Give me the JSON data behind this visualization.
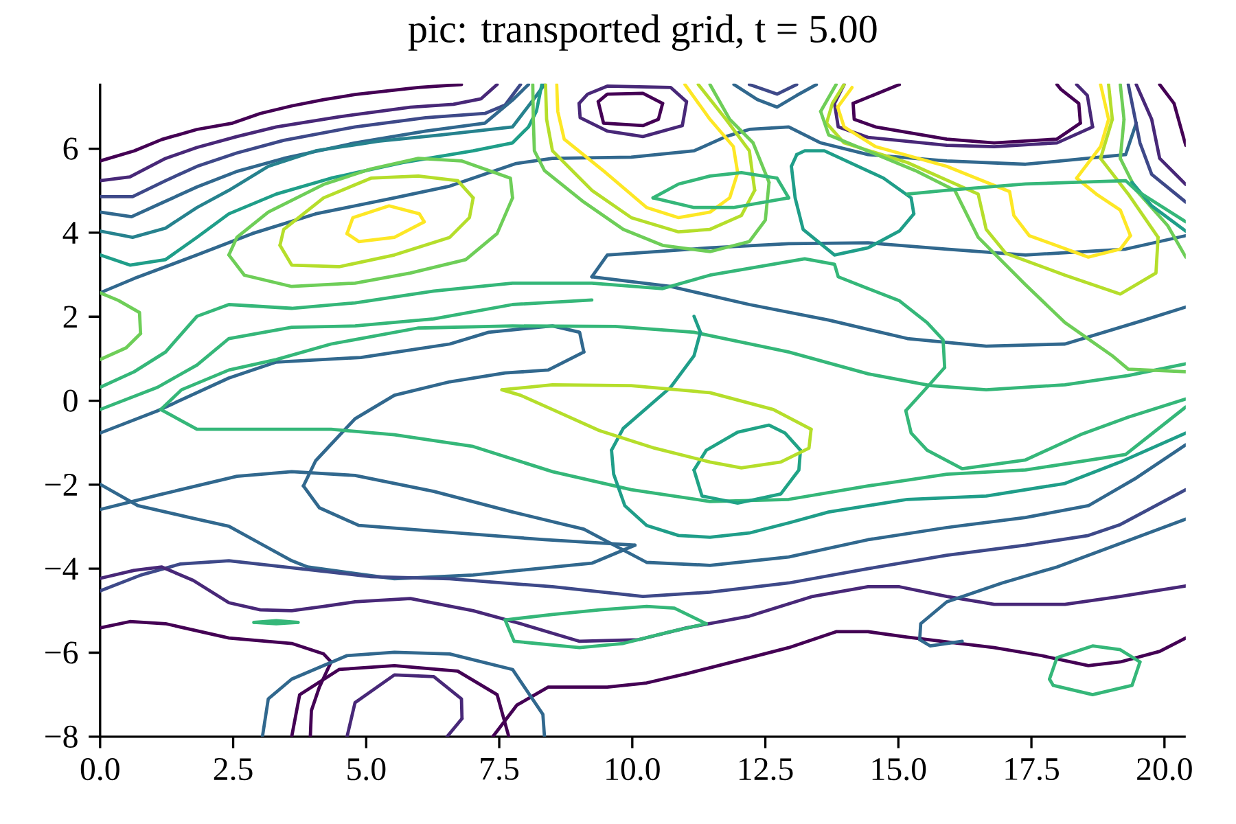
{
  "chart_data": {
    "type": "line",
    "title": "pic: transported grid, t = 5.00",
    "xlim": [
      0,
      20.4
    ],
    "ylim": [
      -8,
      7.55
    ],
    "xticks": [
      {
        "value": 0,
        "label": "0.0"
      },
      {
        "value": 2.5,
        "label": "2.5"
      },
      {
        "value": 5,
        "label": "5.0"
      },
      {
        "value": 7.5,
        "label": "7.5"
      },
      {
        "value": 10,
        "label": "10.0"
      },
      {
        "value": 12.5,
        "label": "12.5"
      },
      {
        "value": 15,
        "label": "15.0"
      },
      {
        "value": 17.5,
        "label": "17.5"
      },
      {
        "value": 20,
        "label": "20.0"
      }
    ],
    "yticks": [
      {
        "value": -8,
        "label": "−8"
      },
      {
        "value": -6,
        "label": "−6"
      },
      {
        "value": -4,
        "label": "−4"
      },
      {
        "value": -2,
        "label": "−2"
      },
      {
        "value": 0,
        "label": "0"
      },
      {
        "value": 2,
        "label": "2"
      },
      {
        "value": 4,
        "label": "4"
      },
      {
        "value": 6,
        "label": "6"
      }
    ],
    "series": [
      {
        "color": "#440154",
        "x": [
          0,
          0.64,
          1.16,
          1.82,
          2.49,
          3.01,
          3.6,
          4.2,
          4.79,
          5.98,
          6.79
        ],
        "values": [
          5.71,
          5.95,
          6.22,
          6.46,
          6.61,
          6.84,
          7.02,
          7.17,
          7.29,
          7.46,
          7.53
        ]
      },
      {
        "color": "#482878",
        "x": [
          0,
          0.56,
          1.23,
          1.82,
          2.57,
          3.31,
          4.49,
          5.83,
          6.64,
          7.16,
          7.46
        ],
        "values": [
          5.24,
          5.33,
          5.77,
          6.03,
          6.29,
          6.52,
          6.76,
          6.99,
          7.06,
          7.19,
          7.53
        ]
      },
      {
        "color": "#3e4989",
        "x": [
          0,
          0.61,
          1.23,
          1.82,
          2.57,
          3.45,
          4.79,
          6.12,
          7.23,
          7.61,
          7.9
        ],
        "values": [
          4.86,
          4.86,
          5.24,
          5.58,
          5.9,
          6.2,
          6.52,
          6.74,
          6.84,
          7.04,
          7.53
        ]
      },
      {
        "color": "#31688e",
        "x": [
          0,
          0.59,
          1.16,
          1.82,
          2.57,
          3.45,
          4.79,
          6.12,
          7.23,
          7.75,
          8.05
        ],
        "values": [
          4.49,
          4.38,
          4.71,
          5.09,
          5.46,
          5.77,
          6.14,
          6.42,
          6.61,
          7.16,
          7.53
        ]
      },
      {
        "color": "#26828e",
        "x": [
          0,
          0.61,
          1.23,
          1.82,
          2.42,
          3.16,
          4.05,
          5.23,
          6.42,
          7.75,
          8.2,
          8.35
        ],
        "values": [
          4.04,
          3.89,
          4.11,
          4.6,
          5.01,
          5.58,
          5.95,
          6.18,
          6.33,
          6.52,
          7.27,
          7.53
        ]
      },
      {
        "color": "#1f9e89",
        "x": [
          0,
          0.56,
          1.23,
          1.82,
          2.42,
          3.31,
          4.34,
          5.68,
          7.01,
          7.75,
          8.05,
          8.2,
          8.3
        ],
        "values": [
          3.47,
          3.23,
          3.36,
          3.89,
          4.45,
          4.92,
          5.3,
          5.67,
          5.95,
          6.14,
          6.52,
          6.9,
          7.53
        ]
      },
      {
        "color": "#31688e",
        "x": [
          0,
          0.64,
          1.82,
          2.86,
          4.05,
          5.53,
          6.57,
          7.82,
          8.5,
          9.98,
          11.16,
          11.76,
          12.2,
          12.94,
          13.54,
          14.43,
          15.91,
          17.39,
          19.27,
          19.47
        ],
        "values": [
          2.57,
          2.91,
          3.47,
          3.98,
          4.45,
          4.83,
          5.11,
          5.65,
          5.77,
          5.8,
          5.95,
          6.29,
          6.46,
          6.52,
          6.14,
          5.86,
          5.71,
          5.63,
          5.86,
          6.61
        ]
      },
      {
        "color": "#31688e",
        "x": [
          9.24,
          9.53,
          11.46,
          12.94,
          14.43,
          15.91,
          17.39,
          19.27,
          20.4
        ],
        "values": [
          2.95,
          3.47,
          3.64,
          3.74,
          3.76,
          3.61,
          3.47,
          3.61,
          3.93
        ]
      },
      {
        "color": "#31688e",
        "x": [
          9.24,
          10.72,
          12.2,
          13.69,
          15.17,
          16.65,
          18.13,
          19.62,
          20.4
        ],
        "values": [
          2.95,
          2.72,
          2.29,
          1.92,
          1.48,
          1.3,
          1.35,
          1.92,
          2.23
        ]
      },
      {
        "color": "#31688e",
        "x": [
          0,
          1.08,
          2.42,
          3.31,
          4.9,
          6.57,
          7.3,
          8.5,
          9.01,
          9.09
        ],
        "values": [
          -0.77,
          -0.24,
          0.54,
          0.92,
          1.03,
          1.35,
          1.63,
          1.78,
          1.63,
          1.16
        ]
      },
      {
        "color": "#31688e",
        "x": [
          3.82,
          4.05,
          4.79,
          5.53,
          6.57,
          7.61,
          8.42,
          9.09
        ],
        "values": [
          -2.03,
          -1.43,
          -0.43,
          0.13,
          0.45,
          0.66,
          0.73,
          1.16
        ]
      },
      {
        "color": "#31688e",
        "x": [
          3.82,
          4.12,
          4.86,
          6.42,
          8.35,
          10.05
        ],
        "values": [
          -2.03,
          -2.55,
          -2.97,
          -3.12,
          -3.31,
          -3.44
        ]
      },
      {
        "color": "#31688e",
        "x": [
          0,
          0.71,
          1.68,
          2.42,
          3.01,
          3.6,
          3.9,
          5.53,
          7.01,
          9.24,
          10.05
        ],
        "values": [
          -1.99,
          -2.5,
          -2.78,
          -2.99,
          -3.4,
          -3.81,
          -3.96,
          -4.24,
          -4.15,
          -3.87,
          -3.44
        ]
      },
      {
        "color": "#31688e",
        "x": [
          0,
          1.08,
          2.57,
          3.6,
          4.79,
          6.27,
          7.75,
          9.09,
          10.27,
          11.46,
          12.94,
          14.43,
          15.91,
          17.39,
          18.57,
          19.47,
          20.4
        ],
        "values": [
          -2.59,
          -2.25,
          -1.8,
          -1.69,
          -1.78,
          -2.16,
          -2.65,
          -3.06,
          -3.85,
          -3.92,
          -3.72,
          -3.31,
          -3.02,
          -2.78,
          -2.5,
          -1.84,
          -1.05
        ]
      },
      {
        "color": "#3e4989",
        "x": [
          0,
          0.77,
          1.5,
          2.42,
          3.75,
          5.09,
          6.57,
          8.5,
          10.2,
          11.46,
          12.94,
          14.43,
          15.91,
          17.39,
          18.57,
          19.17,
          20.4
        ],
        "values": [
          -4.53,
          -4.15,
          -3.89,
          -3.81,
          -4.0,
          -4.19,
          -4.24,
          -4.43,
          -4.66,
          -4.56,
          -4.34,
          -4.0,
          -3.68,
          -3.44,
          -3.21,
          -2.95,
          -2.12
        ]
      },
      {
        "color": "#482878",
        "x": [
          0,
          0.64,
          1.16,
          1.75,
          2.42,
          3.01,
          3.6,
          4.2,
          4.79,
          5.83,
          7.01,
          7.9,
          9.01,
          10.12,
          11.02,
          12.2,
          13.39,
          14.43,
          15.02,
          15.91,
          16.8,
          18.13,
          19.17,
          20.4
        ],
        "values": [
          -4.23,
          -4.04,
          -3.96,
          -4.28,
          -4.81,
          -4.98,
          -5.0,
          -4.9,
          -4.79,
          -4.71,
          -5.0,
          -5.31,
          -5.73,
          -5.69,
          -5.41,
          -5.13,
          -4.66,
          -4.43,
          -4.43,
          -4.66,
          -4.85,
          -4.85,
          -4.66,
          -4.41
        ]
      },
      {
        "color": "#440154",
        "x": [
          0,
          0.56,
          1.23,
          2.42,
          3.6,
          4.2,
          4.34
        ],
        "values": [
          -5.41,
          -5.26,
          -5.31,
          -5.65,
          -5.78,
          -6.03,
          -6.22
        ]
      },
      {
        "color": "#440154",
        "x": [
          3.95,
          3.97,
          4.12,
          4.34
        ],
        "values": [
          -8,
          -7.38,
          -6.82,
          -6.22
        ]
      },
      {
        "color": "#440154",
        "x": [
          7.38,
          7.83,
          8.42,
          9.53,
          10.27,
          11.02,
          12.2,
          12.94,
          13.83,
          14.43,
          15.17,
          16.8,
          17.69,
          18.57,
          19.17,
          19.91,
          20.4
        ],
        "values": [
          -8,
          -7.25,
          -6.82,
          -6.82,
          -6.72,
          -6.5,
          -6.12,
          -5.88,
          -5.5,
          -5.5,
          -5.63,
          -5.88,
          -6.07,
          -6.31,
          -6.22,
          -5.97,
          -5.65
        ]
      },
      {
        "color": "#440154",
        "x": [
          3.6,
          3.75,
          4.49,
          5.53,
          6.72,
          7.46,
          7.68
        ],
        "values": [
          -8,
          -7.0,
          -6.4,
          -6.31,
          -6.44,
          -7.0,
          -8
        ]
      },
      {
        "color": "#482878",
        "x": [
          4.64,
          4.79,
          5.53,
          6.27,
          6.79,
          6.8
        ],
        "values": [
          -8,
          -7.19,
          -6.53,
          -6.57,
          -7.1,
          -7.57
        ]
      },
      {
        "color": "#482878",
        "x": [
          6.52,
          6.8
        ],
        "values": [
          -8,
          -7.57
        ]
      },
      {
        "color": "#31688e",
        "x": [
          3.05,
          3.16,
          3.6,
          4.64,
          5.53,
          6.57,
          7.75,
          8.32,
          8.35
        ],
        "values": [
          -8,
          -7.1,
          -6.63,
          -6.07,
          -5.99,
          -6.03,
          -6.4,
          -7.47,
          -8
        ]
      },
      {
        "color": "#35b779",
        "x": [
          2.89,
          3.31,
          3.72
        ],
        "values": [
          -5.28,
          -5.24,
          -5.28
        ]
      },
      {
        "color": "#35b779",
        "x": [
          2.89,
          3.31,
          3.72
        ],
        "values": [
          -5.28,
          -5.31,
          -5.28
        ]
      },
      {
        "color": "#35b779",
        "x": [
          7.61,
          8.5,
          9.39,
          10.27,
          10.79,
          11.39
        ],
        "values": [
          -5.22,
          -5.09,
          -4.98,
          -4.9,
          -4.94,
          -5.31
        ]
      },
      {
        "color": "#35b779",
        "x": [
          7.61,
          7.78,
          9.01,
          9.83,
          10.72,
          11.39
        ],
        "values": [
          -5.22,
          -5.73,
          -5.88,
          -5.78,
          -5.5,
          -5.31
        ]
      },
      {
        "color": "#31688e",
        "x": [
          15.4,
          15.6,
          16.2
        ],
        "values": [
          -5.69,
          -5.84,
          -5.73
        ]
      },
      {
        "color": "#31688e",
        "x": [
          15.4,
          15.42,
          15.91,
          16.95,
          17.98,
          19.17,
          20.4
        ],
        "values": [
          -5.69,
          -5.31,
          -4.79,
          -4.34,
          -3.96,
          -3.4,
          -2.82
        ]
      },
      {
        "color": "#35b779",
        "x": [
          17.84,
          17.98,
          18.65,
          19.17,
          19.54
        ],
        "values": [
          -6.63,
          -6.12,
          -5.84,
          -5.93,
          -6.22
        ]
      },
      {
        "color": "#35b779",
        "x": [
          17.84,
          17.91,
          18.65,
          19.39,
          19.54
        ],
        "values": [
          -6.63,
          -6.78,
          -7.0,
          -6.78,
          -6.22
        ]
      },
      {
        "color": "#35b779",
        "x": [
          0,
          0.64,
          1.23,
          1.82,
          2.42,
          3.6,
          4.79,
          6.27,
          7.75,
          9.24,
          10.57,
          11.46,
          13.24,
          13.8,
          13.87,
          14.43,
          15.02,
          15.54,
          15.84,
          15.87
        ],
        "values": [
          0.32,
          0.69,
          1.16,
          2.01,
          2.29,
          2.2,
          2.33,
          2.61,
          2.8,
          2.8,
          2.67,
          2.99,
          3.38,
          3.25,
          2.95,
          2.67,
          2.38,
          1.86,
          1.45,
          0.79
        ]
      },
      {
        "color": "#35b779",
        "x": [
          15.14,
          15.54,
          15.87
        ],
        "values": [
          -0.24,
          0.32,
          0.79
        ]
      },
      {
        "color": "#35b779",
        "x": [
          15.14,
          15.24,
          15.54,
          16.2,
          17.39,
          18.42,
          19.32,
          20.4
        ],
        "values": [
          -0.24,
          -0.77,
          -1.18,
          -1.62,
          -1.41,
          -0.81,
          -0.39,
          0.04
        ]
      },
      {
        "color": "#35b779",
        "x": [
          0,
          1.08,
          1.82,
          2.42,
          3.6,
          4.79,
          6.27,
          7.75,
          9.24
        ],
        "values": [
          -0.21,
          0.32,
          0.85,
          1.48,
          1.75,
          1.78,
          1.95,
          2.29,
          2.4
        ]
      },
      {
        "color": "#35b779",
        "x": [
          1.14,
          1.53,
          2.42,
          3.31,
          4.34,
          5.97,
          7.75,
          9.68,
          11.16,
          12.94,
          14.43,
          15.61,
          16.65,
          18.13,
          19.32,
          20.4
        ],
        "values": [
          -0.21,
          0.26,
          0.73,
          0.98,
          1.35,
          1.73,
          1.78,
          1.77,
          1.63,
          1.16,
          0.64,
          0.36,
          0.26,
          0.38,
          0.6,
          0.88
        ]
      },
      {
        "color": "#35b779",
        "x": [
          1.14,
          1.82,
          3.01,
          4.34,
          5.53,
          7.01,
          8.5,
          9.98,
          11.46,
          12.94,
          14.43,
          15.91,
          17.39,
          19.27,
          20.4
        ],
        "values": [
          -0.21,
          -0.68,
          -0.68,
          -0.68,
          -0.81,
          -1.09,
          -1.69,
          -2.12,
          -2.4,
          -2.35,
          -2.03,
          -1.75,
          -1.65,
          -1.28,
          -0.15
        ]
      },
      {
        "color": "#1f9e89",
        "x": [
          11.16,
          11.28
        ],
        "values": [
          2.01,
          1.63
        ]
      },
      {
        "color": "#1f9e89",
        "x": [
          9.61,
          9.83,
          10.72,
          11.16,
          11.28
        ],
        "values": [
          -1.18,
          -0.66,
          0.32,
          1.07,
          1.63
        ]
      },
      {
        "color": "#1f9e89",
        "x": [
          9.61,
          9.65,
          9.86,
          10.27,
          10.87,
          11.46,
          12.2,
          12.94,
          13.69,
          15.17,
          16.65,
          18.13,
          19.17,
          20.4
        ],
        "values": [
          -1.18,
          -1.75,
          -2.5,
          -2.97,
          -3.21,
          -3.25,
          -3.15,
          -2.91,
          -2.65,
          -2.35,
          -2.27,
          -1.97,
          -1.46,
          -0.77
        ]
      },
      {
        "color": "#1f9e89",
        "x": [
          12.99,
          13.09
        ],
        "values": [
          5.58,
          5.86
        ]
      },
      {
        "color": "#1f9e89",
        "x": [
          12.99,
          13.06,
          13.21,
          13.8,
          14.43,
          15.02,
          15.29
        ],
        "values": [
          5.58,
          4.83,
          4.08,
          3.47,
          3.64,
          4.04,
          4.45
        ]
      },
      {
        "color": "#1f9e89",
        "x": [
          13.09,
          13.24,
          13.61,
          14.72,
          15.24,
          15.29
        ],
        "values": [
          5.86,
          5.95,
          5.95,
          5.3,
          4.83,
          4.45
        ]
      },
      {
        "color": "#20a386",
        "x": [
          11.16,
          11.39,
          11.98,
          12.57,
          12.87,
          13.16
        ],
        "values": [
          -1.65,
          -1.18,
          -0.75,
          -0.58,
          -0.77,
          -1.18
        ]
      },
      {
        "color": "#20a386",
        "x": [
          11.16,
          11.31,
          11.98,
          12.79,
          13.13,
          13.16
        ],
        "values": [
          -1.65,
          -2.27,
          -2.44,
          -2.22,
          -1.65,
          -1.18
        ]
      },
      {
        "color": "#b5de2b",
        "x": [
          7.55,
          8.5,
          9.98,
          11.46,
          12.65,
          13.36
        ],
        "values": [
          0.26,
          0.38,
          0.36,
          0.19,
          -0.21,
          -0.68
        ]
      },
      {
        "color": "#b5de2b",
        "x": [
          7.55,
          7.9,
          8.5,
          9.38,
          10.42,
          11.46,
          12.05,
          12.79,
          13.32,
          13.36
        ],
        "values": [
          0.26,
          0.13,
          -0.21,
          -0.71,
          -1.13,
          -1.46,
          -1.6,
          -1.46,
          -1.13,
          -0.68
        ]
      },
      {
        "color": "#6ece58",
        "x": [
          2.42,
          2.57,
          3.16,
          4.2,
          5.09,
          5.98,
          6.79,
          7.71,
          7.75
        ],
        "values": [
          3.47,
          3.89,
          4.49,
          5.15,
          5.52,
          5.77,
          5.71,
          5.3,
          4.83
        ]
      },
      {
        "color": "#6ece58",
        "x": [
          2.42,
          2.71,
          3.6,
          4.79,
          5.83,
          6.87,
          7.46,
          7.75
        ],
        "values": [
          3.47,
          2.99,
          2.72,
          2.8,
          3.04,
          3.36,
          3.98,
          4.83
        ]
      },
      {
        "color": "#b5de2b",
        "x": [
          3.38,
          3.45,
          4.2,
          5.09,
          5.98,
          6.72,
          7.01
        ],
        "values": [
          3.7,
          4.08,
          4.83,
          5.3,
          5.35,
          5.24,
          4.83
        ]
      },
      {
        "color": "#b5de2b",
        "x": [
          3.38,
          3.6,
          4.49,
          5.53,
          6.57,
          6.94,
          7.01
        ],
        "values": [
          3.7,
          3.23,
          3.19,
          3.47,
          3.89,
          4.36,
          4.83
        ]
      },
      {
        "color": "#fde725",
        "x": [
          4.64,
          4.75,
          5.43,
          6.0,
          6.09
        ],
        "values": [
          3.98,
          4.36,
          4.64,
          4.45,
          4.26
        ]
      },
      {
        "color": "#fde725",
        "x": [
          4.64,
          4.86,
          5.53,
          6.09
        ],
        "values": [
          3.98,
          3.79,
          3.89,
          4.26
        ]
      },
      {
        "color": "#6ece58",
        "x": [
          0,
          0.34,
          0.74,
          0.76
        ],
        "values": [
          2.57,
          2.39,
          2.1,
          1.6
        ]
      },
      {
        "color": "#6ece58",
        "x": [
          0,
          0.49,
          0.76
        ],
        "values": [
          0.98,
          1.26,
          1.6
        ]
      },
      {
        "color": "#6ece58",
        "x": [
          8.13,
          8.14,
          8.16,
          8.35,
          9.09,
          9.83,
          10.57,
          11.46,
          12.2,
          12.5,
          12.57
        ],
        "values": [
          7.53,
          6.7,
          5.95,
          5.48,
          4.73,
          4.08,
          3.7,
          3.55,
          3.79,
          4.3,
          5.2
        ]
      },
      {
        "color": "#6ece58",
        "x": [
          11.46,
          11.83,
          12.27,
          12.57
        ],
        "values": [
          7.53,
          6.7,
          6.14,
          5.2
        ]
      },
      {
        "color": "#b5de2b",
        "x": [
          8.37,
          8.39,
          8.5,
          9.24,
          9.98,
          10.87,
          11.46,
          12.05,
          12.3
        ],
        "values": [
          7.53,
          6.7,
          5.95,
          5.01,
          4.36,
          4.02,
          4.08,
          4.41,
          5.01
        ]
      },
      {
        "color": "#b5de2b",
        "x": [
          11.24,
          11.76,
          12.2,
          12.3
        ],
        "values": [
          7.53,
          6.7,
          5.95,
          5.01
        ]
      },
      {
        "color": "#fde725",
        "x": [
          8.58,
          8.6,
          8.72,
          9.5,
          10.27,
          10.87,
          11.46,
          11.83,
          11.98
        ],
        "values": [
          7.53,
          6.89,
          6.23,
          5.43,
          4.6,
          4.36,
          4.49,
          4.83,
          5.43
        ]
      },
      {
        "color": "#fde725",
        "x": [
          10.99,
          11.46,
          11.9,
          11.98
        ],
        "values": [
          7.53,
          6.7,
          6.05,
          5.43
        ]
      },
      {
        "color": "#35b779",
        "x": [
          10.39,
          10.87,
          11.46,
          12.05,
          12.72,
          12.94
        ],
        "values": [
          4.83,
          5.16,
          5.35,
          5.43,
          5.3,
          4.83
        ]
      },
      {
        "color": "#35b779",
        "x": [
          10.39,
          11.16,
          11.9,
          12.94
        ],
        "values": [
          4.83,
          4.6,
          4.6,
          4.83
        ]
      },
      {
        "color": "#440154",
        "x": [
          9.36,
          9.46,
          10.2,
          10.49,
          10.57
        ],
        "values": [
          7.12,
          6.61,
          6.55,
          6.7,
          7.08
        ]
      },
      {
        "color": "#440154",
        "x": [
          9.36,
          9.53,
          10.2,
          10.57
        ],
        "values": [
          7.12,
          7.3,
          7.32,
          7.08
        ]
      },
      {
        "color": "#482878",
        "x": [
          9.0,
          9.02,
          9.53,
          10.2,
          10.94,
          11.02
        ],
        "values": [
          7.08,
          6.74,
          6.42,
          6.29,
          6.55,
          7.12
        ]
      },
      {
        "color": "#482878",
        "x": [
          9.0,
          9.16,
          9.53,
          10.72,
          11.02
        ],
        "values": [
          7.08,
          7.3,
          7.49,
          7.46,
          7.12
        ]
      },
      {
        "color": "#440154",
        "x": [
          14.15,
          15.02
        ],
        "values": [
          7.08,
          7.53
        ]
      },
      {
        "color": "#440154",
        "x": [
          14.15,
          14.17,
          14.57,
          15.91,
          16.8,
          17.98,
          18.42
        ],
        "values": [
          7.08,
          6.7,
          6.52,
          6.23,
          6.14,
          6.23,
          6.61
        ]
      },
      {
        "color": "#440154",
        "x": [
          17.98,
          18.05,
          18.39,
          18.42
        ],
        "values": [
          7.53,
          7.42,
          7.08,
          6.61
        ]
      },
      {
        "color": "#482878",
        "x": [
          13.8,
          13.98
        ],
        "values": [
          7.08,
          7.53
        ]
      },
      {
        "color": "#482878",
        "x": [
          13.8,
          13.87,
          14.43,
          15.91,
          16.8,
          17.98,
          18.65
        ],
        "values": [
          7.08,
          6.52,
          6.27,
          6.08,
          6.05,
          6.14,
          6.52
        ]
      },
      {
        "color": "#482878",
        "x": [
          18.35,
          18.55,
          18.65
        ],
        "values": [
          7.53,
          7.27,
          6.52
        ]
      },
      {
        "color": "#fde725",
        "x": [
          13.86,
          14.13
        ],
        "values": [
          6.99,
          7.46
        ]
      },
      {
        "color": "#fde725",
        "x": [
          13.86,
          13.98,
          14.57,
          15.91,
          17.09,
          17.17,
          17.46,
          18.57,
          19.17,
          19.36
        ],
        "values": [
          6.99,
          6.52,
          6.05,
          5.58,
          4.98,
          4.41,
          3.93,
          3.42,
          3.61,
          3.93
        ]
      },
      {
        "color": "#fde725",
        "x": [
          18.35,
          18.72,
          19.17,
          19.36
        ],
        "values": [
          5.3,
          4.92,
          4.54,
          3.93
        ]
      },
      {
        "color": "#fde725",
        "x": [
          18.35,
          18.8,
          18.95
        ],
        "values": [
          5.3,
          6.05,
          6.7
        ]
      },
      {
        "color": "#fde725",
        "x": [
          18.8,
          18.95
        ],
        "values": [
          7.53,
          6.7
        ]
      },
      {
        "color": "#b5de2b",
        "x": [
          13.65,
          13.76,
          13.98
        ],
        "values": [
          6.61,
          7.08,
          7.53
        ]
      },
      {
        "color": "#b5de2b",
        "x": [
          13.65,
          13.98,
          15.17,
          16.5,
          16.65,
          17.02,
          18.13,
          19.17,
          19.84,
          19.88
        ],
        "values": [
          6.61,
          6.14,
          5.67,
          4.92,
          4.08,
          3.51,
          2.99,
          2.54,
          3.04,
          3.89
        ]
      },
      {
        "color": "#b5de2b",
        "x": [
          18.8,
          19.32,
          19.88
        ],
        "values": [
          5.77,
          4.92,
          3.89
        ]
      },
      {
        "color": "#b5de2b",
        "x": [
          18.8,
          19.02
        ],
        "values": [
          5.77,
          6.7
        ]
      },
      {
        "color": "#b5de2b",
        "x": [
          18.95,
          19.02
        ],
        "values": [
          7.53,
          6.7
        ]
      },
      {
        "color": "#6ece58",
        "x": [
          13.54,
          13.83
        ],
        "values": [
          6.89,
          7.53
        ]
      },
      {
        "color": "#6ece58",
        "x": [
          13.54,
          13.69,
          15.32,
          16.06,
          16.5,
          17.39,
          18.13,
          19.02,
          19.32,
          20.4
        ],
        "values": [
          6.89,
          6.33,
          5.48,
          5.01,
          3.89,
          2.76,
          1.86,
          1.07,
          0.75,
          0.69
        ]
      },
      {
        "color": "#6ece58",
        "x": [
          19.17,
          19.47,
          20.06,
          20.4
        ],
        "values": [
          5.77,
          5.01,
          4.17,
          3.42
        ]
      },
      {
        "color": "#6ece58",
        "x": [
          19.17,
          19.24
        ],
        "values": [
          5.77,
          6.7
        ]
      },
      {
        "color": "#6ece58",
        "x": [
          19.17,
          19.24
        ],
        "values": [
          7.53,
          6.7
        ]
      },
      {
        "color": "#440154",
        "x": [
          19.91,
          20.18,
          20.4
        ],
        "values": [
          7.53,
          7.08,
          6.08
        ]
      },
      {
        "color": "#482878",
        "x": [
          19.47,
          19.76,
          19.91,
          20.4
        ],
        "values": [
          7.53,
          6.7,
          5.77,
          5.15
        ]
      },
      {
        "color": "#3e4989",
        "x": [
          19.32,
          19.54,
          19.76,
          20.4
        ],
        "values": [
          7.53,
          6.14,
          5.39,
          4.73
        ]
      },
      {
        "color": "#1f9e89",
        "x": [
          19.39,
          19.76,
          20.4
        ],
        "values": [
          5.2,
          4.64,
          4.04
        ]
      },
      {
        "color": "#35b779",
        "x": [
          15.17,
          15.91,
          17.39,
          19.27,
          19.47,
          20.4
        ],
        "values": [
          4.92,
          5.01,
          5.16,
          5.24,
          5.01,
          4.26
        ]
      },
      {
        "color": "#31688e",
        "x": [
          11.91,
          12.35,
          12.72,
          13.09,
          13.46
        ],
        "values": [
          7.53,
          7.17,
          6.99,
          7.27,
          7.53
        ]
      },
      {
        "color": "#3e4989",
        "x": [
          12.2,
          12.72,
          13.09
        ],
        "values": [
          7.53,
          7.3,
          7.53
        ]
      }
    ]
  }
}
